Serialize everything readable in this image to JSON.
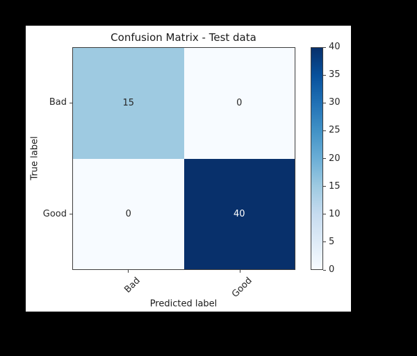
{
  "window": {
    "background_color": "#000000",
    "figure_background_color": "#ffffff"
  },
  "chart_data": {
    "type": "heatmap",
    "title": "Confusion Matrix - Test data",
    "xlabel": "Predicted label",
    "ylabel": "True label",
    "x_categories": [
      "Bad",
      "Good"
    ],
    "y_categories": [
      "Bad",
      "Good"
    ],
    "matrix": [
      [
        15,
        0
      ],
      [
        0,
        40
      ]
    ],
    "colormap": "Blues",
    "colormap_stops": [
      "#f7fbff",
      "#deebf7",
      "#c6dbef",
      "#9ecae1",
      "#6baed6",
      "#4292c6",
      "#2171b5",
      "#08519c",
      "#08306b"
    ],
    "cell_colors": [
      [
        "#9ecae1",
        "#f7fbff"
      ],
      [
        "#f7fbff",
        "#08306b"
      ]
    ],
    "cell_text_colors": [
      [
        "#262626",
        "#262626"
      ],
      [
        "#262626",
        "#ffffff"
      ]
    ],
    "colorbar": {
      "min": 0,
      "max": 40,
      "ticks": [
        0,
        5,
        10,
        15,
        20,
        25,
        30,
        35,
        40
      ],
      "position": "right"
    },
    "grid": false,
    "legend": null,
    "axes_border_color": "#3b3b3b",
    "text_color": "#262626"
  }
}
